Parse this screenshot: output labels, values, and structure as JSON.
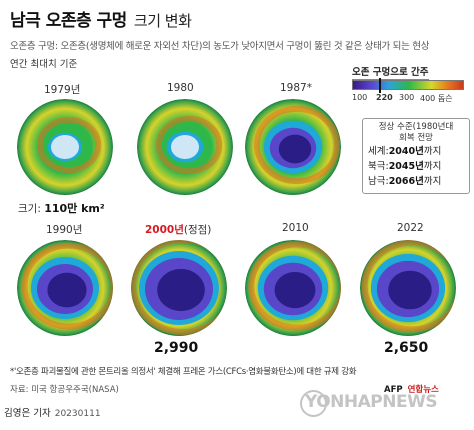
{
  "header": {
    "title_bold": "남극 오존층 구멍",
    "title_rest": "크기 변화",
    "subtitle": "오존층 구멍: 오존층(생명체에 해로운 자외선 차단)의 농도가 낮아지면서 구멍이 뚫린 것 같은 상태가 되는 현상",
    "basis": "연간 최대치 기준"
  },
  "legend": {
    "title": "오존 구멍으로 간주",
    "ticks": [
      "100",
      "220",
      "300",
      "400 돕슨"
    ]
  },
  "recovery": {
    "header_line1": "정상 수준(1980년대",
    "header_line2": "회복 전망",
    "rows": [
      {
        "region": "세계:",
        "year": "2040년",
        "suffix": "까지"
      },
      {
        "region": "북극:",
        "year": "2045년",
        "suffix": "까지"
      },
      {
        "region": "남극:",
        "year": "2066년",
        "suffix": "까지"
      }
    ]
  },
  "globes": [
    {
      "year": "1979년",
      "hole": 0.05
    },
    {
      "year": "1980",
      "hole": 0.1
    },
    {
      "year": "1987*",
      "hole": 0.55
    },
    {
      "year": "1990년",
      "hole": 0.75
    },
    {
      "year": "2000년",
      "note": "(정점)",
      "hole": 1.0
    },
    {
      "year": "2010",
      "hole": 0.8
    },
    {
      "year": "2022",
      "hole": 0.88
    }
  ],
  "size_label": {
    "prefix": "크기:",
    "value": "110만 km²"
  },
  "values": {
    "peak_2000": "2,990",
    "v_2022": "2,650"
  },
  "footnote": "*'오존층 파괴물질에 관한 몬트리올 의정서' 체결해 프레온 가스(CFCs·염화불화탄소)에 대한 규제 강화",
  "source": "자료: 미국 항공우주국(NASA)",
  "byline": {
    "author": "김영은 기자",
    "date": "20230111"
  },
  "credit": {
    "afp": "AFP",
    "yonhap": "연합뉴스"
  },
  "watermark": "YONHAPNEWS",
  "colors": {
    "hole_core": "#2b1d86",
    "hole_mid": "#5a46c8",
    "ring": "#1fa8d8",
    "green": "#2fb84a",
    "yellow": "#d8d22a",
    "orange": "#e0701e"
  }
}
